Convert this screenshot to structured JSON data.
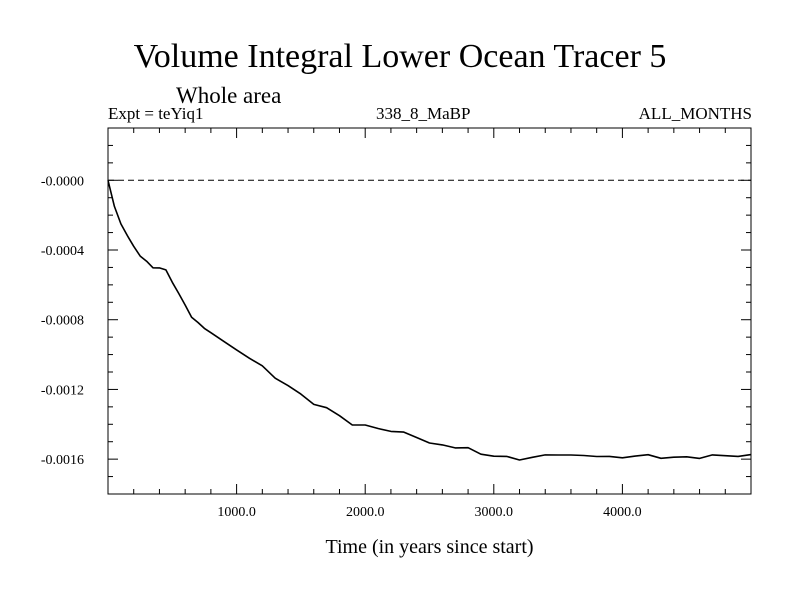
{
  "chart_data": {
    "type": "line",
    "title": "Volume Integral Lower Ocean Tracer 5",
    "subtitle": "Whole area",
    "header_left": "Expt = teYiq1",
    "header_center": "338_8_MaBP",
    "header_right": "ALL_MONTHS",
    "xlabel": "Time (in years since start)",
    "ylabel": "",
    "xlim": [
      0,
      5000
    ],
    "ylim": [
      -0.0018,
      0.0003
    ],
    "x_ticks": [
      1000,
      2000,
      3000,
      4000
    ],
    "x_tick_labels": [
      "1000.0",
      "2000.0",
      "3000.0",
      "4000.0"
    ],
    "y_ticks": [
      0.0,
      -0.0004,
      -0.0008,
      -0.0012,
      -0.0016
    ],
    "y_tick_labels": [
      "-0.0000",
      "-0.0004",
      "-0.0008",
      "-0.0012",
      "-0.0016"
    ],
    "reference_line": 0.0,
    "grid": false,
    "series": [
      {
        "name": "Volume Integral Lower Ocean Tracer 5",
        "x": [
          0,
          50,
          100,
          150,
          200,
          250,
          300,
          350,
          400,
          450,
          500,
          550,
          600,
          650,
          700,
          750,
          800,
          900,
          1000,
          1100,
          1200,
          1300,
          1400,
          1500,
          1600,
          1700,
          1800,
          1900,
          2000,
          2100,
          2200,
          2300,
          2400,
          2500,
          2600,
          2700,
          2800,
          2900,
          3000,
          3100,
          3200,
          3300,
          3400,
          3500,
          3600,
          3700,
          3800,
          3900,
          4000,
          4100,
          4200,
          4300,
          4400,
          4500,
          4600,
          4700,
          4800,
          4900,
          5000
        ],
        "values": [
          0.0,
          -0.00015,
          -0.00025,
          -0.00032,
          -0.00038,
          -0.00043,
          -0.00047,
          -0.0005,
          -0.0005,
          -0.00052,
          -0.00058,
          -0.00065,
          -0.00072,
          -0.00078,
          -0.00082,
          -0.00085,
          -0.00087,
          -0.00093,
          -0.00097,
          -0.00102,
          -0.00107,
          -0.00113,
          -0.00118,
          -0.00123,
          -0.00128,
          -0.00131,
          -0.00135,
          -0.0014,
          -0.00141,
          -0.00142,
          -0.00144,
          -0.00145,
          -0.00147,
          -0.00151,
          -0.00152,
          -0.00153,
          -0.00154,
          -0.00157,
          -0.00158,
          -0.00159,
          -0.0016,
          -0.00159,
          -0.00158,
          -0.00157,
          -0.00158,
          -0.00158,
          -0.00158,
          -0.00159,
          -0.00159,
          -0.00158,
          -0.00158,
          -0.00159,
          -0.00159,
          -0.00159,
          -0.00159,
          -0.00158,
          -0.00158,
          -0.00158,
          -0.00158
        ]
      }
    ]
  }
}
